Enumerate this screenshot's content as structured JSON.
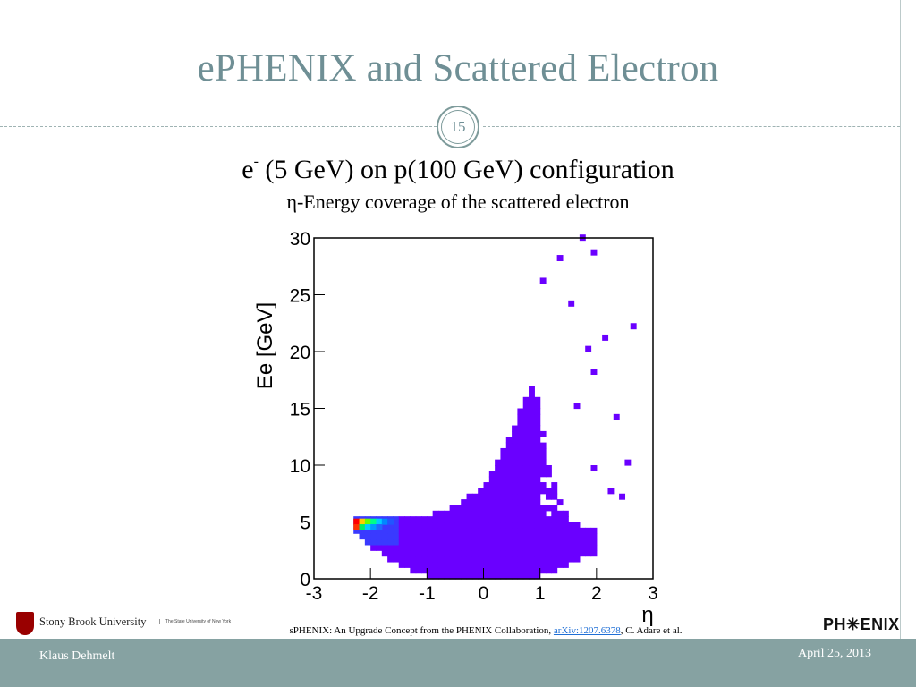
{
  "slide": {
    "title": "ePHENIX and Scattered Electron",
    "page_number": "15",
    "subtitle_prefix": "e",
    "subtitle_sup": "-",
    "subtitle_rest": " (5 GeV) on p(100 GeV) configuration",
    "subtitle2": "η-Energy coverage of the scattered electron",
    "citation_prefix": "sPHENIX: An Upgrade Concept from the PHENIX Collaboration, ",
    "citation_link": "arXiv:1207.6378",
    "citation_suffix": ", C. Adare et al.",
    "institution": "Stony Brook University",
    "institution_tagline": "The State University of New York",
    "experiment_logo": "PH✳ENIX",
    "author": "Klaus Dehmelt",
    "date": "April 25, 2013"
  },
  "colors": {
    "title": "#6f8f95",
    "footer": "#86a2a2",
    "histogram_bulk": "#6a00ff",
    "link": "#1f6fd6"
  },
  "chart_data": {
    "type": "heatmap",
    "xlabel": "η",
    "ylabel": "Ee [GeV]",
    "xlim": [
      -3,
      3
    ],
    "ylim": [
      0,
      30
    ],
    "x_ticks": [
      "-3",
      "-2",
      "-1",
      "0",
      "1",
      "2",
      "3"
    ],
    "y_ticks": [
      "0",
      "5",
      "10",
      "15",
      "20",
      "25",
      "30"
    ],
    "bin_width_eta": 0.1,
    "bin_width_energy": 0.5,
    "description_bins": {
      "dense_region_boundary": [
        {
          "eta": -2.3,
          "e_min": 4.3,
          "e_max": 5.4
        },
        {
          "eta": -2.0,
          "e_min": 3.0,
          "e_max": 5.4
        },
        {
          "eta": -1.5,
          "e_min": 1.5,
          "e_max": 5.3
        },
        {
          "eta": -1.0,
          "e_min": 0.5,
          "e_max": 5.3
        },
        {
          "eta": -0.5,
          "e_min": 0.2,
          "e_max": 6.2
        },
        {
          "eta": 0.0,
          "e_min": 0.2,
          "e_max": 8.0
        },
        {
          "eta": 0.3,
          "e_min": 0.2,
          "e_max": 10.5
        },
        {
          "eta": 0.6,
          "e_min": 0.2,
          "e_max": 14.0
        },
        {
          "eta": 0.9,
          "e_min": 0.3,
          "e_max": 17.0
        },
        {
          "eta": 1.2,
          "e_min": 0.8,
          "e_max": 9.0
        },
        {
          "eta": 1.5,
          "e_min": 1.5,
          "e_max": 5.0
        },
        {
          "eta": 2.0,
          "e_min": 2.5,
          "e_max": 4.0
        }
      ],
      "hot_spot": {
        "eta": -2.2,
        "e": 5.0,
        "color_scale": [
          "red",
          "yellow",
          "green",
          "cyan",
          "blue"
        ]
      },
      "sparse_tail": [
        {
          "eta": 1.0,
          "e": 26.0
        },
        {
          "eta": 1.3,
          "e": 28.0
        },
        {
          "eta": 1.7,
          "e": 29.8
        },
        {
          "eta": 1.9,
          "e": 28.5
        },
        {
          "eta": 1.5,
          "e": 24.0
        },
        {
          "eta": 2.6,
          "e": 22.0
        },
        {
          "eta": 1.9,
          "e": 18.0
        },
        {
          "eta": 2.3,
          "e": 14.0
        },
        {
          "eta": 2.5,
          "e": 10.0
        },
        {
          "eta": 1.9,
          "e": 9.5
        },
        {
          "eta": 2.2,
          "e": 7.5
        },
        {
          "eta": 2.4,
          "e": 7.0
        },
        {
          "eta": 1.8,
          "e": 20.0
        },
        {
          "eta": 2.1,
          "e": 21.0
        },
        {
          "eta": 1.6,
          "e": 15.0
        }
      ]
    }
  }
}
